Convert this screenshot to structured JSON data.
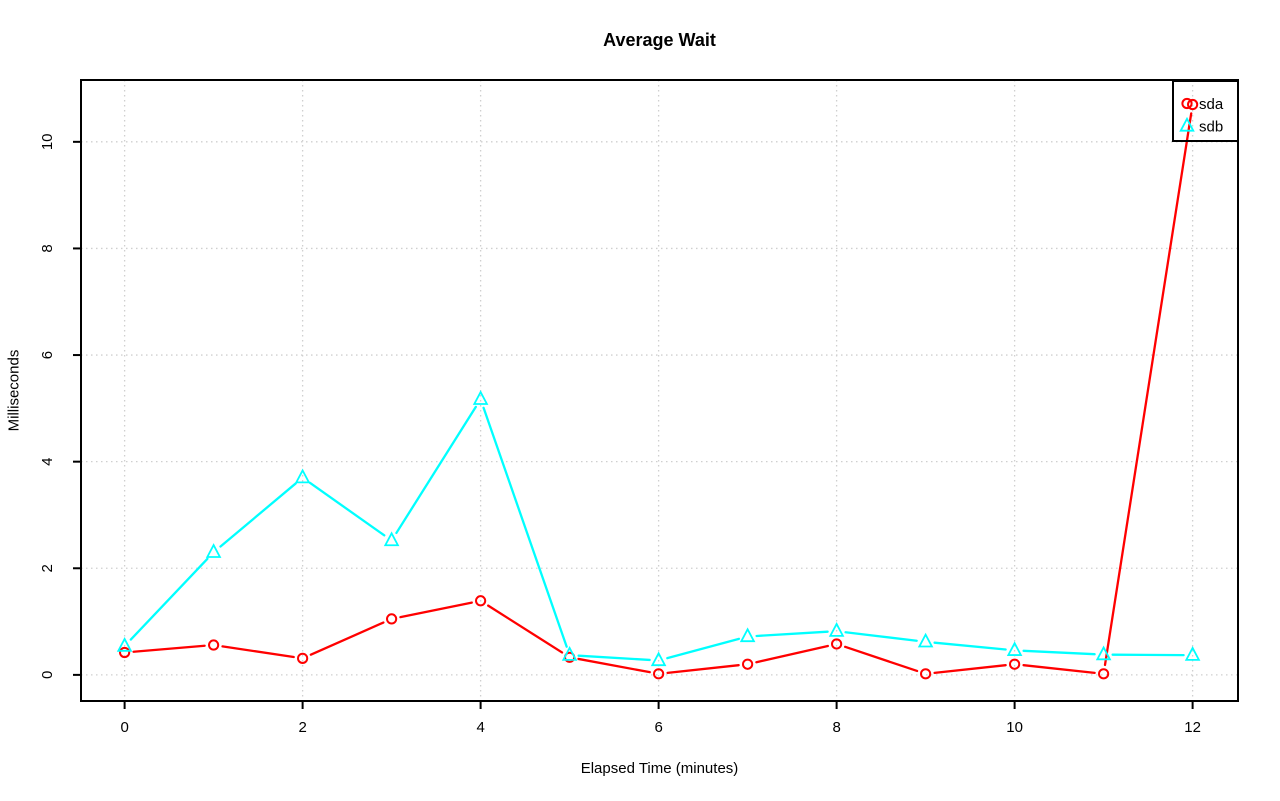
{
  "chart_data": {
    "type": "line",
    "title": "Average Wait",
    "xlabel": "Elapsed Time (minutes)",
    "ylabel": "Milliseconds",
    "x": [
      0,
      1,
      2,
      3,
      4,
      5,
      6,
      7,
      8,
      9,
      10,
      11,
      12
    ],
    "series": [
      {
        "name": "sda",
        "color": "#ff0000",
        "marker": "circle",
        "values": [
          0.42,
          0.56,
          0.31,
          1.05,
          1.39,
          0.33,
          0.02,
          0.2,
          0.58,
          0.02,
          0.2,
          0.02,
          10.7
        ]
      },
      {
        "name": "sdb",
        "color": "#00ffff",
        "marker": "triangle",
        "values": [
          0.54,
          2.3,
          3.7,
          2.52,
          5.17,
          0.37,
          0.27,
          0.72,
          0.82,
          0.62,
          0.46,
          0.38,
          0.37
        ]
      }
    ],
    "xticks": [
      0,
      2,
      4,
      6,
      8,
      10,
      12
    ],
    "yticks": [
      0,
      2,
      4,
      6,
      8,
      10
    ],
    "xlim": [
      -0.49,
      12.51
    ],
    "ylim": [
      -0.49,
      11.16
    ],
    "grid": "dotted",
    "grid_color": "#cfcfcf",
    "axis_color": "#000000",
    "background_color": "#ffffff",
    "legend_position": "topright",
    "legend": {
      "items": [
        {
          "label": "sda",
          "color": "#ff0000",
          "marker": "circle"
        },
        {
          "label": "sdb",
          "color": "#00ffff",
          "marker": "triangle"
        }
      ]
    }
  }
}
